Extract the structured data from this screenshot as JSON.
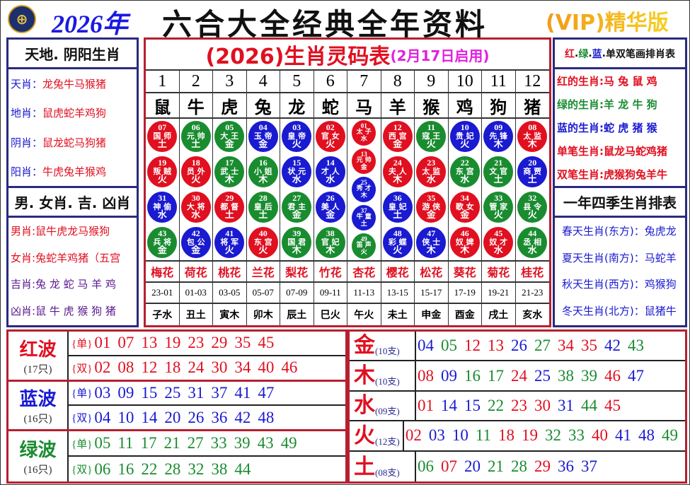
{
  "header": {
    "logo_text": "⊕",
    "year": "2026年",
    "title": "六合大全经典全年资料",
    "vip": "(VIP)精华版"
  },
  "colors": {
    "red": "#e01020",
    "blue": "#1a1ad0",
    "green": "#1a8c30"
  },
  "left": {
    "title1": "天地. 阴阳生肖",
    "rows1": [
      {
        "k": "天肖：",
        "v": "龙兔牛马猴猪"
      },
      {
        "k": "地肖：",
        "v": "鼠虎蛇羊鸡狗"
      },
      {
        "k": "阴肖：",
        "v": "鼠龙蛇马狗猪"
      },
      {
        "k": "阳肖：",
        "v": "牛虎兔羊猴鸡"
      }
    ],
    "title2": "男. 女肖. 吉. 凶肖",
    "rows2": [
      {
        "k": "男肖:",
        "v": "鼠牛虎龙马猴狗",
        "c": "red"
      },
      {
        "k": "女肖:",
        "v": "兔蛇羊鸡猪（五宫",
        "c": "red"
      },
      {
        "k": "吉肖:",
        "v": "兔 龙 蛇 马 羊 鸡",
        "c": "purple"
      },
      {
        "k": "凶肖:",
        "v": "鼠 牛 虎 猴 狗 猪",
        "c": "purple"
      }
    ]
  },
  "center": {
    "title": "(2026)生肖灵码表",
    "subtitle": "(2月17日启用)",
    "numbers": [
      "1",
      "2",
      "3",
      "4",
      "5",
      "6",
      "7",
      "8",
      "9",
      "10",
      "11",
      "12"
    ],
    "zodiacs": [
      "鼠",
      "牛",
      "虎",
      "兔",
      "龙",
      "蛇",
      "马",
      "羊",
      "猴",
      "鸡",
      "狗",
      "猪"
    ],
    "balls": [
      [
        [
          "07",
          "国师",
          "土"
        ],
        [
          "19",
          "叛贼",
          "火"
        ],
        [
          "31",
          "神偷",
          "水"
        ],
        [
          "43",
          "兵将",
          "金"
        ]
      ],
      [
        [
          "06",
          "元帅",
          "土"
        ],
        [
          "18",
          "员外",
          "火"
        ],
        [
          "30",
          "大将",
          "水"
        ],
        [
          "42",
          "包公",
          "金"
        ]
      ],
      [
        [
          "05",
          "大王",
          "金"
        ],
        [
          "17",
          "武士",
          "木"
        ],
        [
          "29",
          "都督",
          "土"
        ],
        [
          "41",
          "将军",
          "火"
        ]
      ],
      [
        [
          "04",
          "玉帝",
          "金"
        ],
        [
          "16",
          "小姐",
          "木"
        ],
        [
          "28",
          "皇后",
          "土"
        ],
        [
          "40",
          "东宫",
          "火"
        ]
      ],
      [
        [
          "03",
          "皇帝",
          "火"
        ],
        [
          "15",
          "状元",
          "水"
        ],
        [
          "27",
          "君主",
          "金"
        ],
        [
          "39",
          "国君",
          "木"
        ]
      ],
      [
        [
          "02",
          "官女",
          "火"
        ],
        [
          "14",
          "才人",
          "水"
        ],
        [
          "26",
          "美人",
          "金"
        ],
        [
          "38",
          "官妃",
          "木"
        ]
      ],
      [
        [
          "01",
          "太子",
          "水"
        ],
        [
          "13",
          "元帅",
          "金"
        ],
        [
          "25",
          "秀才",
          "木"
        ],
        [
          "37",
          "牛童",
          "土"
        ],
        [
          "49",
          "笛声",
          "火"
        ]
      ],
      [
        [
          "12",
          "西宫",
          "金"
        ],
        [
          "24",
          "夫人",
          "木"
        ],
        [
          "36",
          "皇妃",
          "土"
        ],
        [
          "48",
          "彩蝶",
          "火"
        ]
      ],
      [
        [
          "11",
          "寇王",
          "火"
        ],
        [
          "23",
          "太监",
          "水"
        ],
        [
          "35",
          "游侠",
          "金"
        ],
        [
          "47",
          "侠士",
          "木"
        ]
      ],
      [
        [
          "10",
          "贵妃",
          "火"
        ],
        [
          "22",
          "东宫",
          "水"
        ],
        [
          "34",
          "歌女",
          "金"
        ],
        [
          "46",
          "奴婢",
          "木"
        ]
      ],
      [
        [
          "09",
          "先锋",
          "木"
        ],
        [
          "21",
          "文官",
          "土"
        ],
        [
          "33",
          "管家",
          "火"
        ],
        [
          "45",
          "奴才",
          "水"
        ]
      ],
      [
        [
          "08",
          "太监",
          "木"
        ],
        [
          "20",
          "商贾",
          "土"
        ],
        [
          "32",
          "县令",
          "火"
        ],
        [
          "44",
          "丞相",
          "水"
        ]
      ]
    ],
    "flowers": [
      "梅花",
      "荷花",
      "桃花",
      "兰花",
      "梨花",
      "竹花",
      "杏花",
      "樱花",
      "松花",
      "葵花",
      "菊花",
      "桂花"
    ],
    "times": [
      "23-01",
      "01-03",
      "03-05",
      "05-07",
      "07-09",
      "09-11",
      "11-13",
      "13-15",
      "15-17",
      "17-19",
      "19-21",
      "21-23"
    ],
    "branches": [
      "子水",
      "丑土",
      "寅木",
      "卯木",
      "辰土",
      "巳火",
      "午火",
      "未土",
      "申金",
      "酉金",
      "戌土",
      "亥水"
    ]
  },
  "right": {
    "title1_parts": [
      {
        "t": "红",
        "c": "red"
      },
      {
        "t": ".",
        "c": "black"
      },
      {
        "t": "绿",
        "c": "green"
      },
      {
        "t": ".",
        "c": "black"
      },
      {
        "t": "蓝",
        "c": "blue"
      },
      {
        "t": ".",
        "c": "black"
      },
      {
        "t": "单双笔画排肖表",
        "c": "black"
      }
    ],
    "rows1": [
      {
        "k": "红的生肖:",
        "v": "马 兔 鼠 鸡",
        "c": "red"
      },
      {
        "k": "绿的生肖:",
        "v": "羊 龙 牛 狗",
        "c": "green"
      },
      {
        "k": "蓝的生肖:",
        "v": "蛇 虎 猪 猴",
        "c": "blue"
      },
      {
        "k": "单笔生肖:",
        "v": "鼠龙马蛇鸡猪",
        "c": "red"
      },
      {
        "k": "双笔生肖:",
        "v": "虎猴狗兔羊牛",
        "c": "red"
      }
    ],
    "title2": "一年四季生肖排表",
    "rows2": [
      {
        "k": "春天生肖(东方)：",
        "v": "兔虎龙"
      },
      {
        "k": "夏天生肖(南方)：",
        "v": "马蛇羊"
      },
      {
        "k": "秋天生肖(西方)：",
        "v": "鸡猴狗"
      },
      {
        "k": "冬天生肖(北方)：",
        "v": "鼠猪牛"
      }
    ]
  },
  "waves": [
    {
      "name": "红波",
      "count": "(17只)",
      "color": "red",
      "odd_label": "{单}",
      "odd": [
        "01",
        "07",
        "13",
        "19",
        "23",
        "29",
        "35",
        "45"
      ],
      "even_label": "{双}",
      "even": [
        "02",
        "08",
        "12",
        "18",
        "24",
        "30",
        "34",
        "40",
        "46"
      ]
    },
    {
      "name": "蓝波",
      "count": "(16只)",
      "color": "blue",
      "odd_label": "{单}",
      "odd": [
        "03",
        "09",
        "15",
        "25",
        "31",
        "37",
        "41",
        "47"
      ],
      "even_label": "{双}",
      "even": [
        "04",
        "10",
        "14",
        "20",
        "26",
        "36",
        "42",
        "48"
      ]
    },
    {
      "name": "绿波",
      "count": "(16只)",
      "color": "green",
      "odd_label": "{单}",
      "odd": [
        "05",
        "11",
        "17",
        "21",
        "27",
        "33",
        "39",
        "43",
        "49"
      ],
      "even_label": "{双}",
      "even": [
        "06",
        "16",
        "22",
        "28",
        "32",
        "38",
        "44"
      ]
    }
  ],
  "elements": [
    {
      "name": "金",
      "count": "(10支)",
      "nums": [
        "04",
        "05",
        "12",
        "13",
        "26",
        "27",
        "34",
        "35",
        "42",
        "43"
      ]
    },
    {
      "name": "木",
      "count": "(10支)",
      "nums": [
        "08",
        "09",
        "16",
        "17",
        "24",
        "25",
        "38",
        "39",
        "46",
        "47"
      ]
    },
    {
      "name": "水",
      "count": "(09支)",
      "nums": [
        "01",
        "14",
        "15",
        "22",
        "23",
        "30",
        "31",
        "44",
        "45"
      ]
    },
    {
      "name": "火",
      "count": "(12支)",
      "nums": [
        "02",
        "03",
        "10",
        "11",
        "18",
        "19",
        "32",
        "33",
        "40",
        "41",
        "48",
        "49"
      ]
    },
    {
      "name": "土",
      "count": "(08支)",
      "nums": [
        "06",
        "07",
        "20",
        "21",
        "28",
        "29",
        "36",
        "37"
      ]
    }
  ]
}
